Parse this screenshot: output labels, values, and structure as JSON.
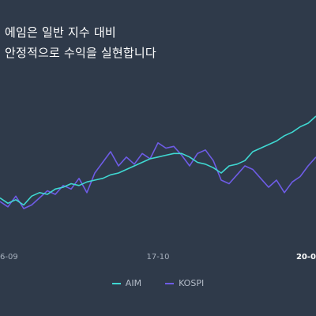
{
  "headline": {
    "line1": "에임은 일반 지수 대비",
    "line2": "안정적으로 수익을 실현합니다"
  },
  "colors": {
    "background": "#2f3a4a",
    "aim": "#3fd8d2",
    "kospi": "#6e5ce6",
    "axis_text": "#a7b0bd",
    "axis_text_strong": "#ffffff"
  },
  "chart_data": {
    "type": "line",
    "title": "",
    "xlabel": "",
    "ylabel": "",
    "x_ticks": [
      "6-09",
      "17-10",
      "20-0"
    ],
    "legend_position": "bottom-center",
    "grid": false,
    "ylim": [
      0.8,
      1.6
    ],
    "series": [
      {
        "name": "AIM",
        "color": "#3fd8d2",
        "x": [
          0,
          10,
          20,
          30,
          40,
          50,
          60,
          70,
          80,
          90,
          100,
          110,
          120,
          130,
          140,
          150,
          160,
          170,
          180,
          190,
          200,
          210,
          220,
          230,
          240,
          250,
          260,
          270,
          280,
          290,
          300,
          310,
          320,
          330,
          340,
          350,
          360,
          370,
          380,
          390,
          400
        ],
        "values": [
          1.02,
          0.99,
          1.01,
          0.98,
          1.03,
          1.05,
          1.04,
          1.07,
          1.08,
          1.1,
          1.09,
          1.11,
          1.12,
          1.13,
          1.15,
          1.16,
          1.18,
          1.2,
          1.22,
          1.24,
          1.25,
          1.26,
          1.27,
          1.27,
          1.25,
          1.22,
          1.21,
          1.19,
          1.16,
          1.2,
          1.21,
          1.23,
          1.28,
          1.3,
          1.32,
          1.34,
          1.37,
          1.39,
          1.42,
          1.44,
          1.48
        ]
      },
      {
        "name": "KOSPI",
        "color": "#6e5ce6",
        "x": [
          0,
          10,
          20,
          30,
          40,
          50,
          60,
          70,
          80,
          90,
          100,
          110,
          120,
          130,
          140,
          150,
          160,
          170,
          180,
          190,
          200,
          210,
          220,
          230,
          240,
          250,
          260,
          270,
          280,
          290,
          300,
          310,
          320,
          330,
          340,
          350,
          360,
          370,
          380,
          390,
          400
        ],
        "values": [
          1.0,
          0.97,
          1.03,
          0.96,
          0.98,
          1.02,
          1.06,
          1.04,
          1.09,
          1.07,
          1.13,
          1.05,
          1.16,
          1.22,
          1.28,
          1.2,
          1.25,
          1.21,
          1.27,
          1.24,
          1.33,
          1.3,
          1.31,
          1.26,
          1.2,
          1.27,
          1.29,
          1.23,
          1.12,
          1.1,
          1.15,
          1.2,
          1.18,
          1.13,
          1.08,
          1.12,
          1.05,
          1.11,
          1.14,
          1.2,
          1.25
        ]
      }
    ]
  }
}
